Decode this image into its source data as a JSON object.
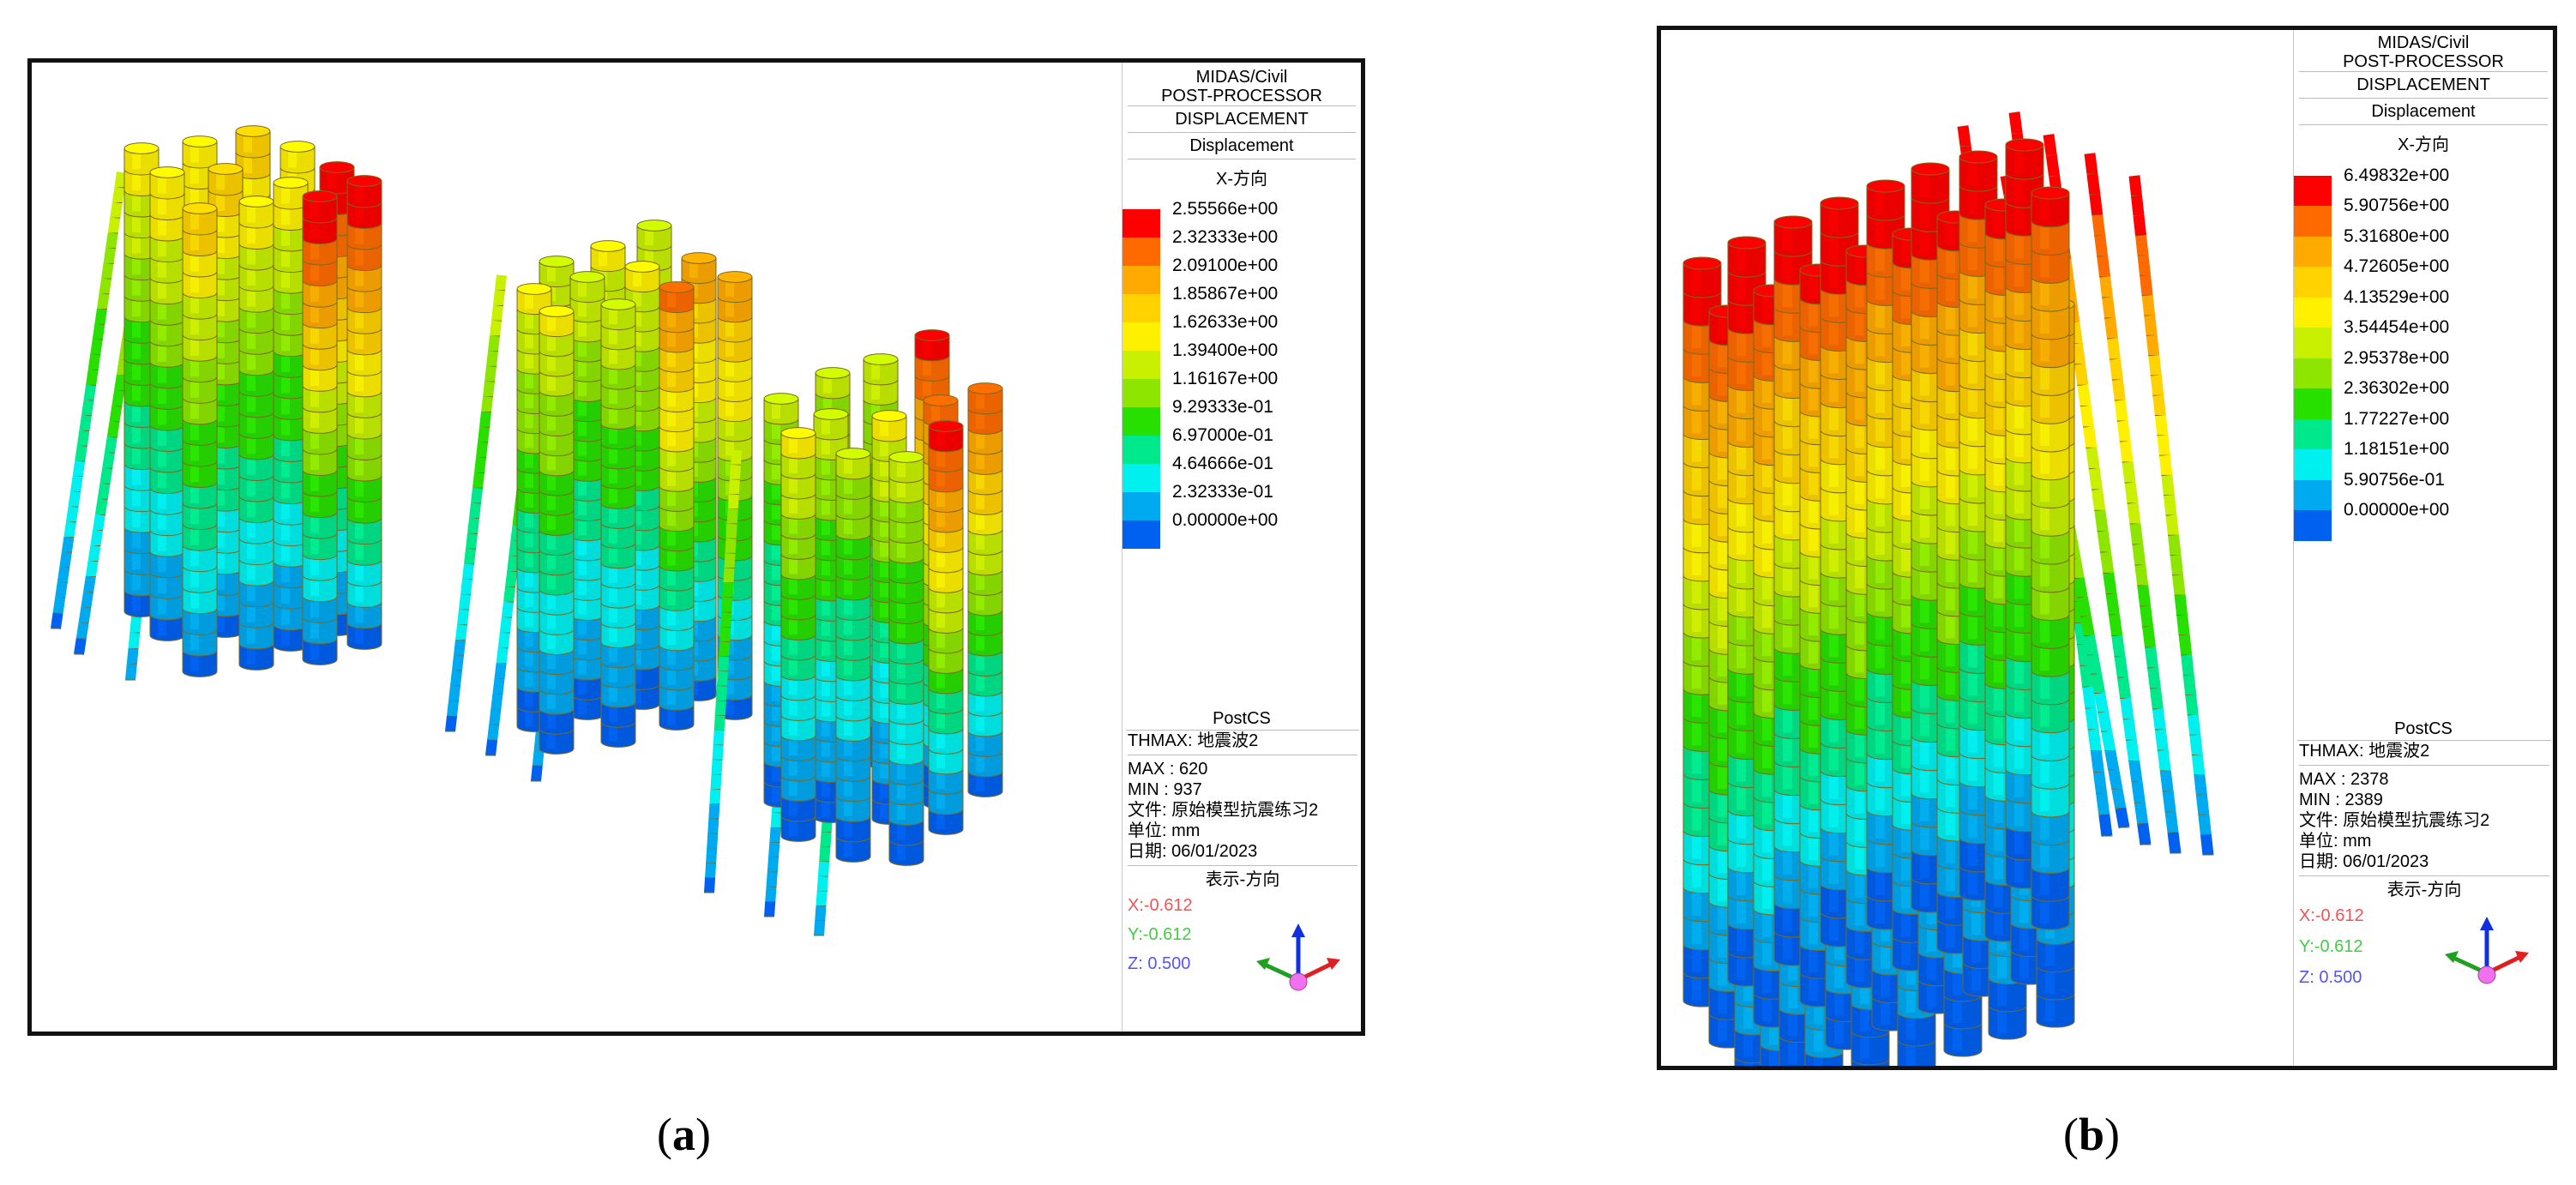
{
  "panels": [
    {
      "caption_open": "(",
      "caption_letter": "a",
      "caption_close": ")",
      "header": {
        "product": "MIDAS/Civil",
        "module": "POST-PROCESSOR",
        "result_type": "DISPLACEMENT",
        "result_name": "Displacement",
        "component": "X-方向"
      },
      "legend": {
        "values": [
          "2.55566e+00",
          "2.32333e+00",
          "2.09100e+00",
          "1.85867e+00",
          "1.62633e+00",
          "1.39400e+00",
          "1.16167e+00",
          "9.29333e-01",
          "6.97000e-01",
          "4.64666e-01",
          "2.32333e-01",
          "0.00000e+00"
        ],
        "colors": [
          "#ff0000",
          "#ff6a00",
          "#ffaa00",
          "#ffd200",
          "#fff000",
          "#c8f000",
          "#8ee600",
          "#28e000",
          "#00e88c",
          "#00f0f0",
          "#00aaf0",
          "#0060f0"
        ]
      },
      "postcs": "PostCS",
      "thmax": "THMAX: 地震波2",
      "max": "MAX : 620",
      "min": "MIN : 937",
      "file": "文件: 原始模型抗震练习2",
      "unit": "单位: mm",
      "date": "日期: 06/01/2023",
      "dir_title": "表示-方向",
      "dir_x": "X:-0.612",
      "dir_y": "Y:-0.612",
      "dir_z": "Z: 0.500"
    },
    {
      "caption_open": "(",
      "caption_letter": "b",
      "caption_close": ")",
      "header": {
        "product": "MIDAS/Civil",
        "module": "POST-PROCESSOR",
        "result_type": "DISPLACEMENT",
        "result_name": "Displacement",
        "component": "X-方向"
      },
      "legend": {
        "values": [
          "6.49832e+00",
          "5.90756e+00",
          "5.31680e+00",
          "4.72605e+00",
          "4.13529e+00",
          "3.54454e+00",
          "2.95378e+00",
          "2.36302e+00",
          "1.77227e+00",
          "1.18151e+00",
          "5.90756e-01",
          "0.00000e+00"
        ],
        "colors": [
          "#ff0000",
          "#ff6a00",
          "#ffaa00",
          "#ffd200",
          "#fff000",
          "#c8f000",
          "#8ee600",
          "#28e000",
          "#00e88c",
          "#00f0f0",
          "#00aaf0",
          "#0060f0"
        ]
      },
      "postcs": "PostCS",
      "thmax": "THMAX: 地震波2",
      "max": "MAX : 2378",
      "min": "MIN : 2389",
      "file": "文件: 原始模型抗震练习2",
      "unit": "单位: mm",
      "date": "日期: 06/01/2023",
      "dir_title": "表示-方向",
      "dir_x": "X:-0.612",
      "dir_y": "Y:-0.612",
      "dir_z": "Z: 0.500"
    }
  ]
}
